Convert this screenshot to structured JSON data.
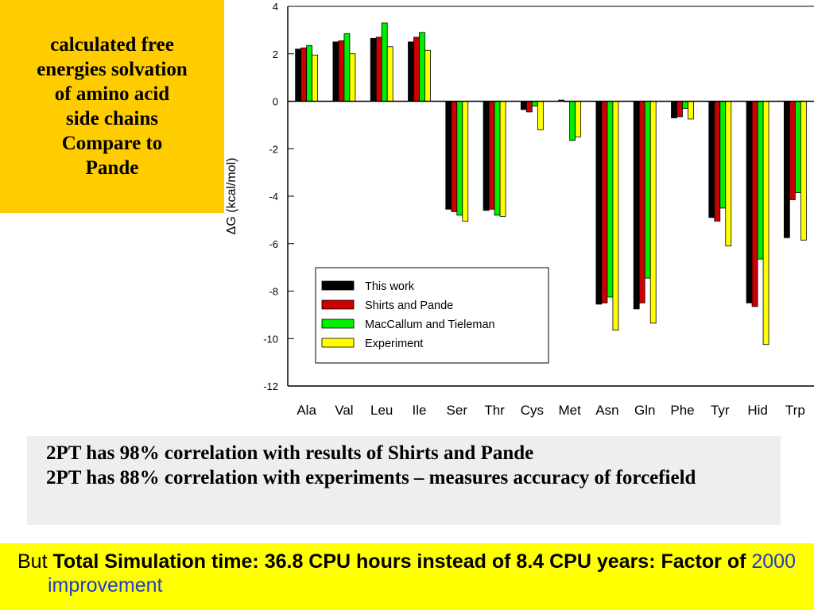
{
  "title_lines": [
    "calculated free",
    "energies solvation",
    "of amino acid",
    "side chains",
    "Compare to",
    "Pande"
  ],
  "chart_data": {
    "type": "bar",
    "ylabel": "ΔG (kcal/mol)",
    "ylim": [
      -12,
      4
    ],
    "yticks": [
      4,
      2,
      0,
      -2,
      -4,
      -6,
      -8,
      -10,
      -12
    ],
    "grid": false,
    "legend_position": "lower-left",
    "categories": [
      "Ala",
      "Val",
      "Leu",
      "Ile",
      "Ser",
      "Thr",
      "Cys",
      "Met",
      "Asn",
      "Gln",
      "Phe",
      "Tyr",
      "Hid",
      "Trp"
    ],
    "series": [
      {
        "name": "This work",
        "color": "#000000",
        "values": [
          2.2,
          2.5,
          2.65,
          2.5,
          -4.55,
          -4.6,
          -0.35,
          0.05,
          -8.55,
          -8.75,
          -0.7,
          -4.9,
          -8.5,
          -5.75
        ]
      },
      {
        "name": "Shirts and Pande",
        "color": "#cc0000",
        "values": [
          2.25,
          2.55,
          2.7,
          2.7,
          -4.65,
          -4.55,
          -0.45,
          0.0,
          -8.5,
          -8.5,
          -0.65,
          -5.05,
          -8.65,
          -4.15
        ]
      },
      {
        "name": "MacCallum and Tieleman",
        "color": "#00ee00",
        "values": [
          2.35,
          2.85,
          3.3,
          2.9,
          -4.8,
          -4.8,
          -0.2,
          -1.65,
          -8.25,
          -7.45,
          -0.3,
          -4.5,
          -6.65,
          -3.85
        ]
      },
      {
        "name": "Experiment",
        "color": "#ffff00",
        "values": [
          1.95,
          2.0,
          2.3,
          2.15,
          -5.05,
          -4.85,
          -1.2,
          -1.5,
          -9.65,
          -9.35,
          -0.75,
          -6.1,
          -10.25,
          -5.85
        ]
      }
    ]
  },
  "notes": [
    "2PT has 98% correlation with results of Shirts and Pande",
    "2PT has 88% correlation with experiments – measures accuracy of forcefield"
  ],
  "footer": {
    "prefix": "But ",
    "bold_text": "Total Simulation time: 36.8 CPU hours instead of 8.4 CPU years: Factor of ",
    "accent_text": "2000 improvement",
    "accent_color": "#1f3fbf"
  }
}
